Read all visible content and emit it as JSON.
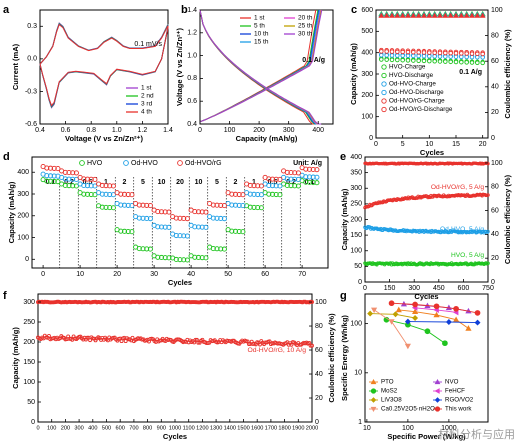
{
  "colors": {
    "red": "#e8322d",
    "green": "#1fc41f",
    "cyan": "#1e9fe6",
    "blue": "#1040d8",
    "purple": "#a040d0",
    "pink": "#f070a0",
    "magenta": "#e040d0",
    "orange": "#f08020",
    "olive": "#c0a000",
    "coral": "#f09070"
  },
  "watermark": "材料分析与应用",
  "chart_data": [
    {
      "panel": "a",
      "type": "line",
      "xlabel": "Voltage (V vs Zn/Zn²⁺)",
      "ylabel": "Current (mA)",
      "xlim": [
        0.4,
        1.4
      ],
      "ylim": [
        -0.6,
        0.45
      ],
      "xticks": [
        "0.4",
        "0.6",
        "0.8",
        "1.0",
        "1.2",
        "1.4"
      ],
      "yticks": [
        "-0.6",
        "-0.3",
        "0.0",
        "0.3"
      ],
      "annotation": "0.1 mV/s",
      "legend": [
        "1 st",
        "2 nd",
        "3 rd",
        "4 th"
      ],
      "series": [
        {
          "name": "1 st",
          "color": "#a040d0"
        },
        {
          "name": "2 nd",
          "color": "#1fc41f"
        },
        {
          "name": "3 rd",
          "color": "#1040d8"
        },
        {
          "name": "4 th",
          "color": "#e8322d"
        }
      ],
      "upper_x": [
        0.4,
        0.45,
        0.5,
        0.53,
        0.55,
        0.58,
        0.62,
        0.7,
        0.78,
        0.85,
        0.9,
        0.96,
        1.0,
        1.05,
        1.1,
        1.2,
        1.3,
        1.35,
        1.4
      ],
      "upper_y": [
        -0.05,
        0.02,
        0.12,
        0.26,
        0.33,
        0.3,
        0.2,
        0.12,
        0.08,
        0.1,
        0.16,
        0.2,
        0.17,
        0.12,
        0.1,
        0.1,
        0.12,
        0.2,
        0.32
      ],
      "lower_x": [
        1.4,
        1.35,
        1.3,
        1.2,
        1.1,
        1.0,
        0.95,
        0.92,
        0.88,
        0.82,
        0.75,
        0.68,
        0.62,
        0.55,
        0.51,
        0.49,
        0.47,
        0.45,
        0.42,
        0.4
      ],
      "lower_y": [
        0.3,
        0.0,
        -0.12,
        -0.15,
        -0.12,
        -0.1,
        -0.16,
        -0.24,
        -0.2,
        -0.14,
        -0.13,
        -0.12,
        -0.13,
        -0.22,
        -0.42,
        -0.45,
        -0.38,
        -0.28,
        -0.15,
        -0.05
      ]
    },
    {
      "panel": "b",
      "type": "line",
      "xlabel": "Capacity (mAh/g)",
      "ylabel": "Voltage (V vs Zn/Zn²⁺)",
      "xlim": [
        0,
        450
      ],
      "ylim": [
        0.4,
        1.4
      ],
      "xticks": [
        "0",
        "100",
        "200",
        "300",
        "400"
      ],
      "yticks": [
        "0.4",
        "0.6",
        "0.8",
        "1.0",
        "1.2",
        "1.4"
      ],
      "annotation": "0.1 A/g",
      "legend": [
        "1 st",
        "5 th",
        "10 th",
        "15 th",
        "20 th",
        "25 th",
        "30 th"
      ],
      "series": [
        {
          "name": "1 st",
          "color": "#e8322d",
          "cap": 390
        },
        {
          "name": "5 th",
          "color": "#1fc41f",
          "cap": 397
        },
        {
          "name": "10 th",
          "color": "#1040d8",
          "cap": 400
        },
        {
          "name": "15 th",
          "color": "#1e9fe6",
          "cap": 403
        },
        {
          "name": "20 th",
          "color": "#e040d0",
          "cap": 406
        },
        {
          "name": "25 th",
          "color": "#c0a000",
          "cap": 408
        },
        {
          "name": "30 th",
          "color": "#a040d0",
          "cap": 410
        }
      ]
    },
    {
      "panel": "c",
      "type": "scatter",
      "xlabel": "Cycles",
      "ylabel": "Capacity (mAh/g)",
      "ylabel_right": "Coulombic efficiency (%)",
      "xlim": [
        0,
        21
      ],
      "ylim": [
        0,
        600
      ],
      "ylim_right": [
        0,
        100
      ],
      "xticks": [
        "0",
        "5",
        "10",
        "15",
        "20"
      ],
      "yticks": [
        "0",
        "100",
        "200",
        "300",
        "400",
        "500",
        "600"
      ],
      "yticks_right": [
        "0",
        "20",
        "40",
        "60",
        "80",
        "100"
      ],
      "annotation": "0.1 A/g",
      "legend": [
        "HVO-Charge",
        "HVO-Discharge",
        "Od-HVO-Charge",
        "Od-HVO-Discharge",
        "Od-HVO/rG-Charge",
        "Od-HVO/rG-Discharge"
      ],
      "series": [
        {
          "name": "HVO-Charge",
          "color": "#1fc41f",
          "marker": "circle",
          "start": 372,
          "end": 356
        },
        {
          "name": "HVO-Discharge",
          "color": "#1fc41f",
          "marker": "circle",
          "start": 368,
          "end": 352
        },
        {
          "name": "Od-HVO-Charge",
          "color": "#1e9fe6",
          "marker": "circle",
          "start": 392,
          "end": 382
        },
        {
          "name": "Od-HVO-Discharge",
          "color": "#1e9fe6",
          "marker": "circle",
          "start": 388,
          "end": 378
        },
        {
          "name": "Od-HVO/rG-Charge",
          "color": "#e8322d",
          "marker": "circle",
          "start": 412,
          "end": 400
        },
        {
          "name": "Od-HVO/rG-Discharge",
          "color": "#e8322d",
          "marker": "circle",
          "start": 406,
          "end": 394
        }
      ],
      "ce_colors": [
        "#1fc41f",
        "#1e9fe6",
        "#e8322d"
      ]
    },
    {
      "panel": "d",
      "type": "scatter",
      "xlabel": "Cycles",
      "ylabel": "Capacity (mAh/g)",
      "xlim": [
        -3,
        77
      ],
      "ylim": [
        -40,
        470
      ],
      "xticks": [
        "0",
        "10",
        "20",
        "30",
        "40",
        "50",
        "60",
        "70"
      ],
      "yticks": [
        "0",
        "100",
        "200",
        "300",
        "400"
      ],
      "unit_label": "Unit: A/g",
      "legend": [
        "HVO",
        "Od-HVO",
        "Od-HVO/rG"
      ],
      "rates": [
        "0.1",
        "0.2",
        "0.5",
        "1",
        "2",
        "5",
        "10",
        "20",
        "10",
        "5",
        "2",
        "1",
        "0.5",
        "0.2",
        "0.1"
      ],
      "series": [
        {
          "name": "HVO",
          "color": "#1fc41f",
          "values": [
            360,
            340,
            300,
            240,
            130,
            50,
            10,
            0,
            10,
            50,
            130,
            240,
            300,
            340,
            355
          ]
        },
        {
          "name": "Od-HVO",
          "color": "#1e9fe6",
          "values": [
            385,
            370,
            340,
            300,
            250,
            190,
            150,
            110,
            150,
            190,
            250,
            300,
            340,
            370,
            380
          ]
        },
        {
          "name": "Od-HVO/rG",
          "color": "#e8322d",
          "values": [
            420,
            400,
            370,
            340,
            300,
            250,
            220,
            190,
            220,
            250,
            300,
            340,
            370,
            400,
            415
          ]
        }
      ]
    },
    {
      "panel": "e",
      "type": "scatter",
      "xlabel": "Cycles",
      "ylabel": "Capacity (mAh/g)",
      "ylabel_right": "Coulombic efficiency (%)",
      "xlim": [
        0,
        750
      ],
      "ylim": [
        0,
        400
      ],
      "ylim_right": [
        0,
        105
      ],
      "xticks": [
        "0",
        "150",
        "300",
        "450",
        "600",
        "750"
      ],
      "yticks": [
        "0",
        "50",
        "100",
        "150",
        "200",
        "250",
        "300",
        "350",
        "400"
      ],
      "yticks_right": [
        "0",
        "20",
        "40",
        "60",
        "80",
        "100"
      ],
      "legend": [
        "Od-HVO/rG, 5 A/g",
        "Od-HVO, 5 A/g",
        "HVO, 5 A/g"
      ],
      "series": [
        {
          "name": "Od-HVO/rG, 5 A/g",
          "color": "#e8322d",
          "start": 240,
          "end": 278
        },
        {
          "name": "Od-HVO, 5 A/g",
          "color": "#1e9fe6",
          "start": 175,
          "end": 160
        },
        {
          "name": "HVO, 5 A/g",
          "color": "#1fc41f",
          "start": 58,
          "end": 58
        }
      ],
      "ce": 99.5
    },
    {
      "panel": "f",
      "type": "scatter",
      "xlabel": "Cycles",
      "ylabel": "Capacity (mAh/g)",
      "ylabel_right": "Coulombic efficiency (%)",
      "xlim": [
        0,
        2000
      ],
      "ylim": [
        0,
        320
      ],
      "ylim_right": [
        0,
        106.7
      ],
      "xticks": [
        "0",
        "100",
        "200",
        "300",
        "400",
        "500",
        "600",
        "700",
        "800",
        "900",
        "1000",
        "1100",
        "1200",
        "1300",
        "1400",
        "1500",
        "1600",
        "1700",
        "1800",
        "1900",
        "2000"
      ],
      "yticks": [
        "0",
        "50",
        "100",
        "150",
        "200",
        "250",
        "300"
      ],
      "yticks_right": [
        "0",
        "20",
        "40",
        "60",
        "80",
        "100"
      ],
      "legend": [
        "Od-HVO/rG, 10 A/g"
      ],
      "series": [
        {
          "name": "Od-HVO/rG, 10 A/g",
          "color": "#e8322d",
          "start": 212,
          "end": 195
        }
      ],
      "ce": 100
    },
    {
      "panel": "g",
      "type": "line",
      "xlabel": "Specific Power (W/kg)",
      "ylabel": "Specific Energy (Wh/kg)",
      "log_scale": true,
      "xlim": [
        9,
        9000
      ],
      "ylim": [
        1,
        400
      ],
      "xticks": [
        "10",
        "100",
        "1000"
      ],
      "yticks": [
        "1",
        "10",
        "100"
      ],
      "series": [
        {
          "name": "PTO",
          "color": "#f08020",
          "marker": "triangle-up",
          "x": [
            60,
            150,
            500,
            1500,
            3000
          ],
          "y": [
            190,
            175,
            150,
            120,
            80
          ]
        },
        {
          "name": "MoS2",
          "color": "#1fc41f",
          "marker": "circle",
          "x": [
            30,
            100,
            300,
            800
          ],
          "y": [
            120,
            95,
            70,
            40
          ]
        },
        {
          "name": "LiV3O8",
          "color": "#c0a000",
          "marker": "diamond",
          "x": [
            12,
            50,
            150
          ],
          "y": [
            160,
            155,
            130
          ]
        },
        {
          "name": "Ca0.25V2O5·nH2O",
          "color": "#f09070",
          "marker": "triangle-down",
          "x": [
            15,
            40,
            100
          ],
          "y": [
            190,
            110,
            35
          ]
        },
        {
          "name": "NVO",
          "color": "#a040d0",
          "marker": "triangle-up",
          "x": [
            80,
            300,
            1000,
            3000
          ],
          "y": [
            250,
            230,
            210,
            180
          ]
        },
        {
          "name": "FeHCF",
          "color": "#e040d0",
          "marker": "triangle-left",
          "x": [
            150,
            500,
            1500
          ],
          "y": [
            210,
            190,
            170
          ]
        },
        {
          "name": "RGO/VO2",
          "color": "#1040d8",
          "marker": "diamond",
          "x": [
            100,
            1000,
            5000
          ],
          "y": [
            110,
            108,
            105
          ]
        },
        {
          "name": "This work",
          "color": "#e8322d",
          "marker": "circle",
          "x": [
            40,
            150,
            500,
            1500,
            5000
          ],
          "y": [
            260,
            245,
            225,
            200,
            165
          ]
        }
      ]
    }
  ]
}
